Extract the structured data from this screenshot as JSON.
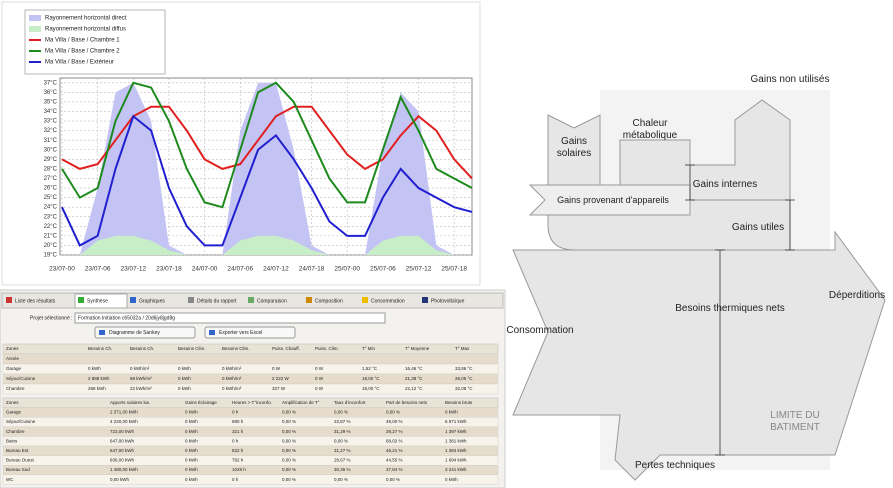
{
  "chart_data": {
    "type": "line",
    "categories": [
      "23/07-00",
      null,
      "23/07-06",
      null,
      "23/07-12",
      null,
      "23/07-18",
      null,
      "24/07-00",
      null,
      "24/07-06",
      null,
      "24/07-12",
      null,
      "24/07-18",
      null,
      "25/07-00",
      null,
      "25/07-06",
      null,
      "25/07-12",
      null,
      "25/07-18",
      null
    ],
    "series": [
      {
        "name": "Rayonnement horizontal direct",
        "color": "#c4c4f4",
        "style": "area",
        "values": [
          19,
          19,
          26,
          36,
          37,
          33,
          20,
          19,
          19,
          19,
          32,
          37,
          37,
          30,
          20,
          19,
          19,
          19,
          30,
          36,
          34,
          20,
          19,
          19
        ]
      },
      {
        "name": "Rayonnement horizontal diffus",
        "color": "#c8eec8",
        "style": "area",
        "values": [
          19,
          19,
          20.5,
          21,
          21,
          20.5,
          19.5,
          19,
          19,
          19,
          20.5,
          21,
          21,
          20.5,
          19.5,
          19,
          19,
          19,
          20.5,
          21,
          21,
          19.5,
          19,
          19
        ]
      },
      {
        "name": "Ma Villa / Base / Chambre 1",
        "color": "#e02020",
        "style": "line",
        "values": [
          29,
          28,
          28.5,
          31,
          33.5,
          34.5,
          34.5,
          32,
          29,
          28,
          28.5,
          31,
          33.5,
          34.5,
          34.5,
          32,
          29.5,
          28,
          29,
          31.5,
          33.5,
          32,
          29,
          27
        ]
      },
      {
        "name": "Ma Villa / Base / Chambre 2",
        "color": "#1e8a1e",
        "style": "line",
        "values": [
          28,
          25,
          26,
          33,
          37,
          36.5,
          33,
          28,
          24.5,
          24,
          30,
          36,
          37,
          35,
          31,
          27,
          24.5,
          24.5,
          30,
          35.5,
          32,
          28,
          27,
          26
        ]
      },
      {
        "name": "Ma Villa / Base / Extérieur",
        "color": "#2020d0",
        "style": "line",
        "values": [
          24,
          20,
          21,
          28,
          33.5,
          32,
          26,
          22,
          20,
          20,
          25,
          30,
          31.5,
          29,
          26,
          22.5,
          21,
          21,
          25,
          28,
          26,
          25,
          24,
          23.5
        ]
      }
    ],
    "ylim": [
      19,
      37.5
    ],
    "yticks": [
      {
        "value": 19,
        "label": "19°C"
      },
      {
        "value": 20,
        "label": "20°C"
      },
      {
        "value": 21,
        "label": "21°C"
      },
      {
        "value": 22,
        "label": "22°C"
      },
      {
        "value": 23,
        "label": "23°C"
      },
      {
        "value": 24,
        "label": "24°C"
      },
      {
        "value": 25,
        "label": "25°C"
      },
      {
        "value": 26,
        "label": "26°C"
      },
      {
        "value": 27,
        "label": "27°C"
      },
      {
        "value": 28,
        "label": "28°C"
      },
      {
        "value": 29,
        "label": "29°C"
      },
      {
        "value": 30,
        "label": "30°C"
      },
      {
        "value": 31,
        "label": "31°C"
      },
      {
        "value": 32,
        "label": "32°C"
      },
      {
        "value": 33,
        "label": "33°C"
      },
      {
        "value": 34,
        "label": "34°C"
      },
      {
        "value": 35,
        "label": "35°C"
      },
      {
        "value": 36,
        "label": "36°C"
      },
      {
        "value": 37,
        "label": "37°C"
      }
    ],
    "grid": true,
    "legend": "top-left"
  },
  "software": {
    "tabs": [
      "Liste des résultats",
      "Synthèse",
      "Graphiques",
      "Détails du rapport",
      "Comparaison",
      "Composition",
      "Consommation",
      "Photovoltaïque"
    ],
    "project_label": "Projet sélectionné :",
    "project_value": "Formation Initiation c65032a / 20d6jy8jgd8g",
    "buttons": [
      "Diagramme de Sankey",
      "Exporter vers Excel"
    ],
    "table1": {
      "headers": [
        "Zones",
        "Besoins Ch.",
        "Besoins Ch.",
        "Besoins Clim.",
        "Besoins Clim.",
        "Puiss. Chauff.",
        "Puiss. Clim.",
        "T° Min",
        "T° Moyenne",
        "T° Max"
      ],
      "rows": [
        [
          "Année"
        ],
        [
          "Garage",
          "0 kWh",
          "0 kWh/m²",
          "0 kWh",
          "0 kWh/m²",
          "0 W",
          "0 W",
          "1,52 °C",
          "16,46 °C",
          "33,86 °C"
        ],
        [
          "Séjour/Cuisine",
          "2 888 kWh",
          "68 kWh/m²",
          "0 kWh",
          "0 kWh/m²",
          "2 222 W",
          "0 W",
          "18,00 °C",
          "21,38 °C",
          "28,05 °C"
        ],
        [
          "Chambre",
          "268 kWh",
          "22 kWh/m²",
          "0 kWh",
          "0 kWh/m²",
          "327 W",
          "0 W",
          "18,00 °C",
          "22,12 °C",
          "32,08 °C"
        ]
      ]
    },
    "table2": {
      "headers": [
        "Zones",
        "Apports solaires kw.",
        "Gains Éclairage",
        "Heures > T°inconfo.",
        "Amplification de T°",
        "Taux d'inconfort",
        "Part de besoins nets",
        "Besoins bruts"
      ],
      "rows": [
        [
          "Garage",
          "2 371,00 kWh",
          "0 kWh",
          "0 h",
          "0,00 %",
          "0,00 %",
          "0,00 %",
          "0 kWh"
        ],
        [
          "Séjour/Cuisine",
          "4 220,00 kWh",
          "0 kWh",
          "880 h",
          "0,00 %",
          "22,87 %",
          "48,00 %",
          "6 971 kWh"
        ],
        [
          "Chambre",
          "723,00 kWh",
          "0 kWh",
          "321 h",
          "0,00 %",
          "31,29 %",
          "29,27 %",
          "1 397 kWh"
        ],
        [
          "Bains",
          "647,00 kWh",
          "0 kWh",
          "0 h",
          "0,00 %",
          "0,00 %",
          "68,02 %",
          "1 381 kWh"
        ],
        [
          "Bureau Est",
          "647,00 kWh",
          "0 kWh",
          "822 h",
          "0,00 %",
          "31,27 %",
          "46,21 %",
          "1 384 kWh"
        ],
        [
          "Bureau Ouest",
          "836,00 kWh",
          "0 kWh",
          "792 h",
          "0,00 %",
          "28,67 %",
          "44,55 %",
          "1 694 kWh"
        ],
        [
          "Bureau Sud",
          "1 480,00 kWh",
          "0 kWh",
          "1029 h",
          "0,00 %",
          "30,36 %",
          "37,84 %",
          "3 241 kWh"
        ],
        [
          "WC",
          "0,00 kWh",
          "0 kWh",
          "0 h",
          "0,00 %",
          "0,00 %",
          "0,00 %",
          "0 kWh"
        ]
      ]
    }
  },
  "diagram": {
    "nodes": [
      {
        "label": "Gains non utilisés"
      },
      {
        "label": "Chaleur métabolique"
      },
      {
        "label": "Gains solaires"
      },
      {
        "label": "Gains internes"
      },
      {
        "label": "Gains provenant d'appareils"
      },
      {
        "label": "Gains utiles"
      },
      {
        "label": "Déperditions"
      },
      {
        "label": "Besoins thermiques nets"
      },
      {
        "label": "Consommation"
      },
      {
        "label": "LIMITE DU BATIMENT"
      },
      {
        "label": "Pertes techniques"
      }
    ]
  }
}
